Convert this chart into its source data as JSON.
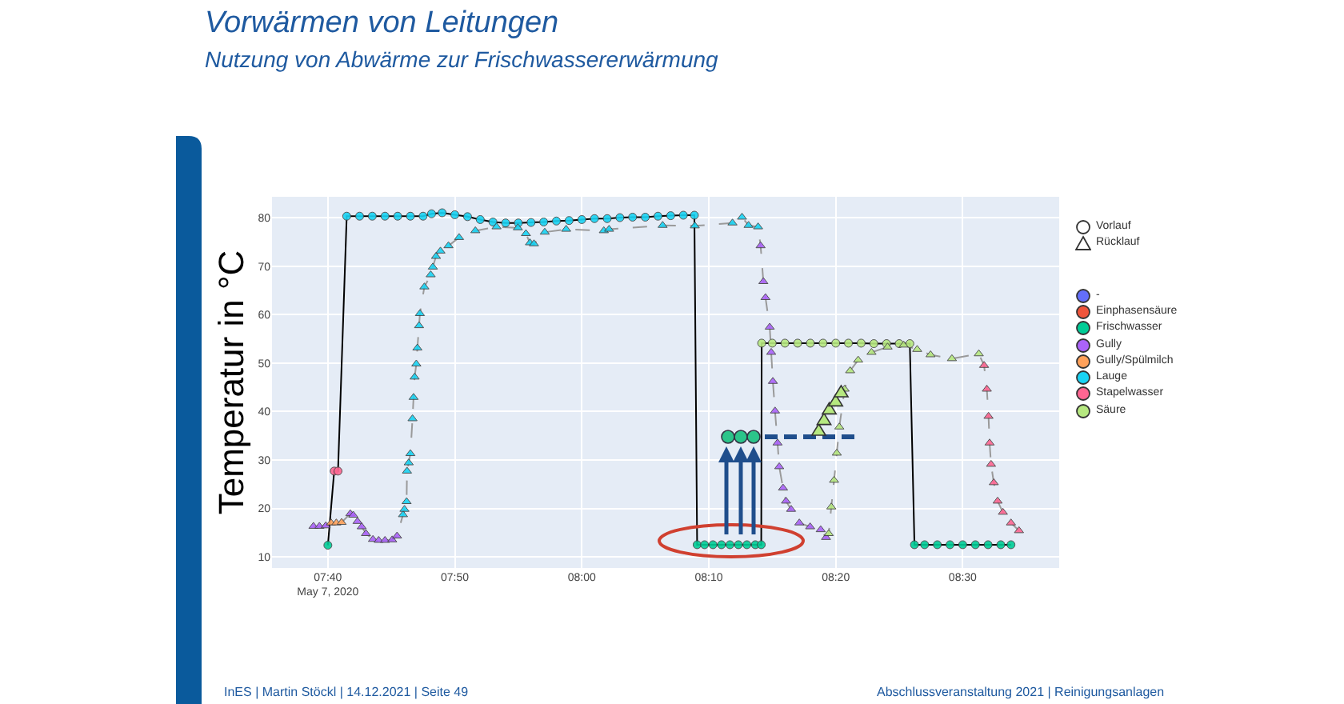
{
  "chart_data": {
    "type": "scatter",
    "title": "Vorwärmen von Leitungen",
    "subtitle": "Nutzung von Abwärme zur Frischwassererwärmung",
    "ylabel": "Temperatur in °C",
    "annotations": [
      "InES | Martin Stöckl | 14.12.2021 | Seite 49",
      "Abschlussveranstaltung 2021 | Reinigungsanlagen"
    ],
    "xlim": [
      "2020-05-07T07:35:36",
      "2020-05-07T08:37:36"
    ],
    "xticks": [
      {
        "value": "2020-05-07T07:40",
        "label": "07:40\nMay 7, 2020"
      },
      {
        "value": "2020-05-07T07:50",
        "label": "07:50"
      },
      {
        "value": "2020-05-07T08:00",
        "label": "08:00"
      },
      {
        "value": "2020-05-07T08:10",
        "label": "08:10"
      },
      {
        "value": "2020-05-07T08:20",
        "label": "08:20"
      },
      {
        "value": "2020-05-07T08:30",
        "label": "08:30"
      }
    ],
    "ylim": [
      7.7,
      84.3
    ],
    "yticks": [
      10,
      20,
      30,
      40,
      50,
      60,
      70,
      80
    ],
    "grid": true,
    "legend": "top right",
    "series": [
      {
        "name": "Vorlauf",
        "marker": "circle",
        "color": "#ffffff"
      },
      {
        "name": "Rücklauf",
        "marker": "triangle",
        "color": "#ffffff"
      },
      {
        "name": "-",
        "color": "#636efa"
      },
      {
        "name": "Einphasensäure",
        "color": "#ef553b"
      },
      {
        "name": "Frischwasser",
        "color": "#00cc96"
      },
      {
        "name": "Gully",
        "color": "#ab63fa"
      },
      {
        "name": "Gully/Spülmilch",
        "color": "#ffa15a"
      },
      {
        "name": "Lauge",
        "color": "#19d3f3"
      },
      {
        "name": "Stapelwasser",
        "color": "#ff6692"
      },
      {
        "name": "Säure",
        "color": "#b6e880"
      },
      {
        "type": "line",
        "color": "#000000",
        "marker": "none",
        "line_style": "solid",
        "x": [
          "2020-05-07T07:40:00",
          "2020-05-07T07:40:30",
          "2020-05-07T07:40:48",
          "2020-05-07T07:41:29",
          "2020-05-07T07:42:30",
          "2020-05-07T07:43:30",
          "2020-05-07T07:44:30",
          "2020-05-07T07:45:30",
          "2020-05-07T07:46:30",
          "2020-05-07T07:47:30",
          "2020-05-07T07:48:10",
          "2020-05-07T07:49:00",
          "2020-05-07T07:50:00",
          "2020-05-07T07:51:00",
          "2020-05-07T07:52:00",
          "2020-05-07T07:53:00",
          "2020-05-07T07:54:00",
          "2020-05-07T07:55:00",
          "2020-05-07T07:56:00",
          "2020-05-07T07:57:00",
          "2020-05-07T07:58:00",
          "2020-05-07T07:59:00",
          "2020-05-07T08:00:00",
          "2020-05-07T08:01:00",
          "2020-05-07T08:02:00",
          "2020-05-07T08:03:00",
          "2020-05-07T08:04:00",
          "2020-05-07T08:05:00",
          "2020-05-07T08:06:00",
          "2020-05-07T08:07:00",
          "2020-05-07T08:08:00",
          "2020-05-07T08:08:52",
          "2020-05-07T08:09:05",
          "2020-05-07T08:09:40",
          "2020-05-07T08:10:20",
          "2020-05-07T08:11:00",
          "2020-05-07T08:11:40",
          "2020-05-07T08:12:20",
          "2020-05-07T08:13:00",
          "2020-05-07T08:13:40",
          "2020-05-07T08:14:08",
          "2020-05-07T08:14:10",
          "2020-05-07T08:15:00",
          "2020-05-07T08:16:00",
          "2020-05-07T08:17:00",
          "2020-05-07T08:18:00",
          "2020-05-07T08:19:00",
          "2020-05-07T08:20:00",
          "2020-05-07T08:21:00",
          "2020-05-07T08:22:00",
          "2020-05-07T08:23:00",
          "2020-05-07T08:24:00",
          "2020-05-07T08:25:00",
          "2020-05-07T08:25:50",
          "2020-05-07T08:26:12",
          "2020-05-07T08:27:00",
          "2020-05-07T08:28:00",
          "2020-05-07T08:29:00",
          "2020-05-07T08:30:00",
          "2020-05-07T08:31:00",
          "2020-05-07T08:32:00",
          "2020-05-07T08:33:00",
          "2020-05-07T08:33:48"
        ],
        "values": [
          12.4,
          27.7,
          27.7,
          80.3,
          80.3,
          80.3,
          80.3,
          80.3,
          80.3,
          80.3,
          80.8,
          81.0,
          80.6,
          80.2,
          79.6,
          79.1,
          78.9,
          78.9,
          79.0,
          79.1,
          79.3,
          79.4,
          79.6,
          79.8,
          79.8,
          80.0,
          80.1,
          80.1,
          80.3,
          80.4,
          80.5,
          80.5,
          12.5,
          12.5,
          12.5,
          12.5,
          12.5,
          12.5,
          12.5,
          12.5,
          12.5,
          54.1,
          54.1,
          54.1,
          54.1,
          54.1,
          54.1,
          54.1,
          54.1,
          54.1,
          54.0,
          54.0,
          54.0,
          54.0,
          12.5,
          12.5,
          12.5,
          12.5,
          12.5,
          12.5,
          12.5,
          12.5,
          12.5
        ]
      },
      {
        "type": "line",
        "color": "#9a9a9a",
        "marker": "none",
        "line_style": "dashed",
        "x": [
          "2020-05-07T07:38:52",
          "2020-05-07T07:39:20",
          "2020-05-07T07:39:50",
          "2020-05-07T07:40:15",
          "2020-05-07T07:40:40",
          "2020-05-07T07:41:05",
          "2020-05-07T07:41:46",
          "2020-05-07T07:42:00",
          "2020-05-07T07:42:20",
          "2020-05-07T07:42:40",
          "2020-05-07T07:43:00",
          "2020-05-07T07:43:33",
          "2020-05-07T07:44:00",
          "2020-05-07T07:44:30",
          "2020-05-07T07:45:04",
          "2020-05-07T07:45:27",
          "2020-05-07T07:45:55",
          "2020-05-07T07:46:02",
          "2020-05-07T07:46:12",
          "2020-05-07T07:46:14",
          "2020-05-07T07:46:22",
          "2020-05-07T07:46:30",
          "2020-05-07T07:46:40",
          "2020-05-07T07:46:45",
          "2020-05-07T07:46:50",
          "2020-05-07T07:46:58",
          "2020-05-07T07:47:03",
          "2020-05-07T07:47:11",
          "2020-05-07T07:47:15",
          "2020-05-07T07:47:36",
          "2020-05-07T07:48:06",
          "2020-05-07T07:48:16",
          "2020-05-07T07:48:31",
          "2020-05-07T07:48:52",
          "2020-05-07T07:49:30",
          "2020-05-07T07:50:20",
          "2020-05-07T07:51:37",
          "2020-05-07T07:53:17",
          "2020-05-07T07:54:58",
          "2020-05-07T07:55:36",
          "2020-05-07T07:55:55",
          "2020-05-07T07:56:14",
          "2020-05-07T07:57:05",
          "2020-05-07T07:58:46",
          "2020-05-07T08:01:44",
          "2020-05-07T08:02:09",
          "2020-05-07T08:06:22",
          "2020-05-07T08:08:54",
          "2020-05-07T08:11:52",
          "2020-05-07T08:12:37",
          "2020-05-07T08:13:08",
          "2020-05-07T08:13:53",
          "2020-05-07T08:14:05",
          "2020-05-07T08:14:18",
          "2020-05-07T08:14:28",
          "2020-05-07T08:14:48",
          "2020-05-07T08:14:55",
          "2020-05-07T08:15:03",
          "2020-05-07T08:15:13",
          "2020-05-07T08:15:25",
          "2020-05-07T08:15:33",
          "2020-05-07T08:15:51",
          "2020-05-07T08:16:05",
          "2020-05-07T08:16:29",
          "2020-05-07T08:17:08",
          "2020-05-07T08:17:59",
          "2020-05-07T08:18:49",
          "2020-05-07T08:19:14",
          "2020-05-07T08:19:27",
          "2020-05-07T08:19:39",
          "2020-05-07T08:19:52",
          "2020-05-07T08:20:05",
          "2020-05-07T08:20:17",
          "2020-05-07T08:20:42",
          "2020-05-07T08:21:08",
          "2020-05-07T08:21:46",
          "2020-05-07T08:22:49",
          "2020-05-07T08:24:05",
          "2020-05-07T08:25:21",
          "2020-05-07T08:26:25",
          "2020-05-07T08:27:28",
          "2020-05-07T08:29:09",
          "2020-05-07T08:31:16",
          "2020-05-07T08:31:41",
          "2020-05-07T08:31:54",
          "2020-05-07T08:32:02",
          "2020-05-07T08:32:07",
          "2020-05-07T08:32:14",
          "2020-05-07T08:32:27",
          "2020-05-07T08:32:45",
          "2020-05-07T08:33:10",
          "2020-05-07T08:33:48",
          "2020-05-07T08:34:26"
        ],
        "values": [
          16.3,
          16.3,
          16.4,
          17.0,
          17.0,
          17.1,
          18.9,
          18.6,
          17.3,
          16.2,
          14.8,
          13.6,
          13.4,
          13.4,
          13.5,
          14.3,
          18.7,
          19.8,
          21.4,
          27.7,
          29.4,
          31.3,
          38.5,
          42.9,
          47.1,
          49.8,
          53.1,
          57.7,
          60.2,
          65.7,
          68.2,
          69.8,
          72.0,
          73.1,
          74.2,
          75.9,
          77.3,
          78.1,
          77.9,
          76.7,
          74.8,
          74.6,
          77.0,
          77.6,
          77.3,
          77.6,
          78.4,
          78.3,
          78.9,
          80.1,
          78.4,
          78.1,
          74.2,
          66.8,
          63.5,
          57.4,
          52.2,
          46.2,
          40.1,
          33.5,
          28.6,
          24.2,
          21.5,
          19.8,
          17.0,
          16.2,
          15.6,
          14.0,
          14.8,
          20.3,
          25.8,
          31.4,
          36.8,
          44.6,
          48.4,
          50.6,
          52.2,
          53.3,
          53.7,
          52.8,
          51.7,
          50.9,
          51.9,
          49.5,
          44.6,
          39.0,
          33.5,
          29.1,
          25.3,
          21.5,
          19.2,
          17.0,
          15.4
        ]
      },
      {
        "marker": "circle",
        "color": "#00cc96",
        "x": [
          "2020-05-07T07:40:00",
          "2020-05-07T08:09:05",
          "2020-05-07T08:09:40",
          "2020-05-07T08:10:20",
          "2020-05-07T08:11:00",
          "2020-05-07T08:11:40",
          "2020-05-07T08:12:20",
          "2020-05-07T08:13:00",
          "2020-05-07T08:13:40",
          "2020-05-07T08:14:08",
          "2020-05-07T08:26:12",
          "2020-05-07T08:27:00",
          "2020-05-07T08:28:00",
          "2020-05-07T08:29:00",
          "2020-05-07T08:30:00",
          "2020-05-07T08:31:00",
          "2020-05-07T08:32:00",
          "2020-05-07T08:33:00",
          "2020-05-07T08:33:48"
        ],
        "values": [
          12.4,
          12.5,
          12.5,
          12.5,
          12.5,
          12.5,
          12.5,
          12.5,
          12.5,
          12.5,
          12.5,
          12.5,
          12.5,
          12.5,
          12.5,
          12.5,
          12.5,
          12.5,
          12.5
        ]
      },
      {
        "marker": "circle",
        "color": "#ff6692",
        "x": [
          "2020-05-07T07:40:30",
          "2020-05-07T07:40:48"
        ],
        "values": [
          27.7,
          27.7
        ]
      },
      {
        "marker": "circle",
        "color": "#19d3f3",
        "x": [
          "2020-05-07T07:41:29",
          "2020-05-07T07:42:30",
          "2020-05-07T07:43:30",
          "2020-05-07T07:44:30",
          "2020-05-07T07:45:30",
          "2020-05-07T07:46:30",
          "2020-05-07T07:47:30",
          "2020-05-07T07:48:10",
          "2020-05-07T07:49:00",
          "2020-05-07T07:50:00",
          "2020-05-07T07:51:00",
          "2020-05-07T07:52:00",
          "2020-05-07T07:53:00",
          "2020-05-07T07:54:00",
          "2020-05-07T07:55:00",
          "2020-05-07T07:56:00",
          "2020-05-07T07:57:00",
          "2020-05-07T07:58:00",
          "2020-05-07T07:59:00",
          "2020-05-07T08:00:00",
          "2020-05-07T08:01:00",
          "2020-05-07T08:02:00",
          "2020-05-07T08:03:00",
          "2020-05-07T08:04:00",
          "2020-05-07T08:05:00",
          "2020-05-07T08:06:00",
          "2020-05-07T08:07:00",
          "2020-05-07T08:08:00",
          "2020-05-07T08:08:52"
        ],
        "values": [
          80.3,
          80.3,
          80.3,
          80.3,
          80.3,
          80.3,
          80.3,
          80.8,
          81.0,
          80.6,
          80.2,
          79.6,
          79.1,
          78.9,
          78.9,
          79.0,
          79.1,
          79.3,
          79.4,
          79.6,
          79.8,
          79.8,
          80.0,
          80.1,
          80.1,
          80.3,
          80.4,
          80.5,
          80.5
        ]
      },
      {
        "marker": "circle",
        "color": "#b6e880",
        "x": [
          "2020-05-07T08:14:10",
          "2020-05-07T08:15:00",
          "2020-05-07T08:16:00",
          "2020-05-07T08:17:00",
          "2020-05-07T08:18:00",
          "2020-05-07T08:19:00",
          "2020-05-07T08:20:00",
          "2020-05-07T08:21:00",
          "2020-05-07T08:22:00",
          "2020-05-07T08:23:00",
          "2020-05-07T08:24:00",
          "2020-05-07T08:25:00",
          "2020-05-07T08:25:50"
        ],
        "values": [
          54.1,
          54.1,
          54.1,
          54.1,
          54.1,
          54.1,
          54.1,
          54.1,
          54.1,
          54.0,
          54.0,
          54.0,
          54.0
        ]
      },
      {
        "marker": "triangle",
        "color": "#ab63fa",
        "x": [
          "2020-05-07T07:38:52",
          "2020-05-07T07:39:20",
          "2020-05-07T07:39:50",
          "2020-05-07T07:41:46",
          "2020-05-07T07:42:00",
          "2020-05-07T07:42:20",
          "2020-05-07T07:42:40",
          "2020-05-07T07:43:00",
          "2020-05-07T07:43:33",
          "2020-05-07T07:44:00",
          "2020-05-07T07:44:30",
          "2020-05-07T07:45:04",
          "2020-05-07T07:45:27",
          "2020-05-07T08:14:05",
          "2020-05-07T08:14:18",
          "2020-05-07T08:14:28",
          "2020-05-07T08:14:48",
          "2020-05-07T08:14:55",
          "2020-05-07T08:15:03",
          "2020-05-07T08:15:13",
          "2020-05-07T08:15:25",
          "2020-05-07T08:15:33",
          "2020-05-07T08:15:51",
          "2020-05-07T08:16:05",
          "2020-05-07T08:16:29",
          "2020-05-07T08:17:08",
          "2020-05-07T08:17:59",
          "2020-05-07T08:18:49",
          "2020-05-07T08:19:14"
        ],
        "values": [
          16.3,
          16.3,
          16.4,
          18.9,
          18.6,
          17.3,
          16.2,
          14.8,
          13.6,
          13.4,
          13.4,
          13.5,
          14.3,
          74.2,
          66.8,
          63.5,
          57.4,
          52.2,
          46.2,
          40.1,
          33.5,
          28.6,
          24.2,
          21.5,
          19.8,
          17.0,
          16.2,
          15.6,
          14.0
        ]
      },
      {
        "marker": "triangle",
        "color": "#ffa15a",
        "x": [
          "2020-05-07T07:40:15",
          "2020-05-07T07:40:40",
          "2020-05-07T07:41:05"
        ],
        "values": [
          17.0,
          17.0,
          17.1
        ]
      },
      {
        "marker": "triangle",
        "color": "#19d3f3",
        "x": [
          "2020-05-07T07:45:55",
          "2020-05-07T07:46:02",
          "2020-05-07T07:46:12",
          "2020-05-07T07:46:14",
          "2020-05-07T07:46:22",
          "2020-05-07T07:46:30",
          "2020-05-07T07:46:40",
          "2020-05-07T07:46:45",
          "2020-05-07T07:46:50",
          "2020-05-07T07:46:58",
          "2020-05-07T07:47:03",
          "2020-05-07T07:47:11",
          "2020-05-07T07:47:15",
          "2020-05-07T07:47:36",
          "2020-05-07T07:48:06",
          "2020-05-07T07:48:16",
          "2020-05-07T07:48:31",
          "2020-05-07T07:48:52",
          "2020-05-07T07:49:30",
          "2020-05-07T07:50:20",
          "2020-05-07T07:51:37",
          "2020-05-07T07:53:17",
          "2020-05-07T07:54:58",
          "2020-05-07T07:55:36",
          "2020-05-07T07:55:55",
          "2020-05-07T07:56:14",
          "2020-05-07T07:57:05",
          "2020-05-07T07:58:46",
          "2020-05-07T08:01:44",
          "2020-05-07T08:02:09",
          "2020-05-07T08:06:22",
          "2020-05-07T08:08:54",
          "2020-05-07T08:11:52",
          "2020-05-07T08:12:37",
          "2020-05-07T08:13:08",
          "2020-05-07T08:13:53"
        ],
        "values": [
          18.7,
          19.8,
          21.4,
          27.7,
          29.4,
          31.3,
          38.5,
          42.9,
          47.1,
          49.8,
          53.1,
          57.7,
          60.2,
          65.7,
          68.2,
          69.8,
          72.0,
          73.1,
          74.2,
          75.9,
          77.3,
          78.1,
          77.9,
          76.7,
          74.8,
          74.6,
          77.0,
          77.6,
          77.3,
          77.6,
          78.4,
          78.3,
          78.9,
          80.1,
          78.4,
          78.1
        ]
      },
      {
        "marker": "triangle",
        "color": "#b6e880",
        "x": [
          "2020-05-07T08:19:27",
          "2020-05-07T08:19:39",
          "2020-05-07T08:19:52",
          "2020-05-07T08:20:05",
          "2020-05-07T08:20:17",
          "2020-05-07T08:20:42",
          "2020-05-07T08:21:08",
          "2020-05-07T08:21:46",
          "2020-05-07T08:22:49",
          "2020-05-07T08:24:05",
          "2020-05-07T08:25:21",
          "2020-05-07T08:26:25",
          "2020-05-07T08:27:28",
          "2020-05-07T08:29:09",
          "2020-05-07T08:31:16"
        ],
        "values": [
          14.8,
          20.3,
          25.8,
          31.4,
          36.8,
          44.6,
          48.4,
          50.6,
          52.2,
          53.3,
          53.7,
          52.8,
          51.7,
          50.9,
          51.9
        ]
      },
      {
        "marker": "triangle",
        "color": "#ff6692",
        "x": [
          "2020-05-07T08:31:41",
          "2020-05-07T08:31:54",
          "2020-05-07T08:32:02",
          "2020-05-07T08:32:07",
          "2020-05-07T08:32:14",
          "2020-05-07T08:32:27",
          "2020-05-07T08:32:45",
          "2020-05-07T08:33:10",
          "2020-05-07T08:33:48",
          "2020-05-07T08:34:26"
        ],
        "values": [
          49.5,
          44.6,
          39.0,
          33.5,
          29.1,
          25.3,
          21.5,
          19.2,
          17.0,
          15.4
        ]
      }
    ]
  }
}
